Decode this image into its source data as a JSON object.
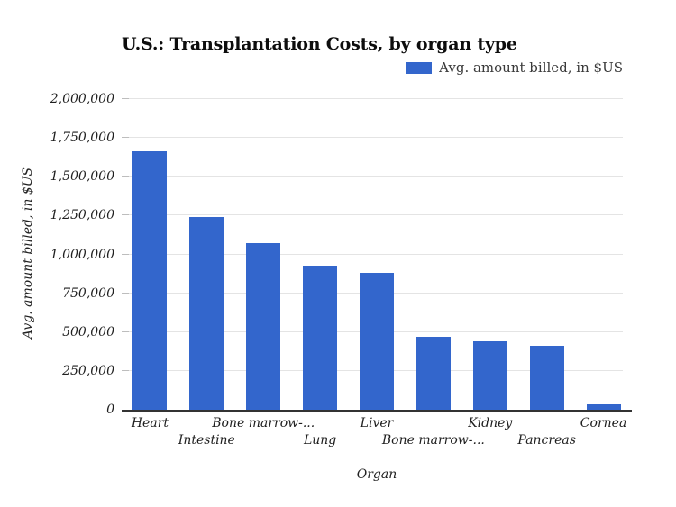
{
  "page": {
    "background_color": "#ffffff"
  },
  "chart_data": {
    "type": "bar",
    "title": "U.S.: Transplantation Costs, by organ type",
    "legend": {
      "label": "Avg. amount billed, in $US",
      "swatch_color": "#3366cc",
      "position": "top-right"
    },
    "xlabel": "Organ",
    "ylabel": "Avg. amount billed, in $US",
    "categories": [
      "Heart",
      "Intestine",
      "Bone marrow-...",
      "Lung",
      "Liver",
      "Bone marrow-...",
      "Kidney",
      "Pancreas",
      "Cornea"
    ],
    "values": [
      1664800,
      1240700,
      1071700,
      929600,
      878400,
      471600,
      442500,
      408800,
      32500
    ],
    "ylim": [
      0,
      2000000
    ],
    "y_tick_interval": 250000,
    "y_tick_labels": [
      "0",
      "250,000",
      "500,000",
      "750,000",
      "1,000,000",
      "1,250,000",
      "1,500,000",
      "1,750,000",
      "2,000,000"
    ],
    "grid": true,
    "x_labels_staggered": true,
    "bar_color": "#3366cc",
    "gridline_color": "#e4e4e4",
    "tick_color": "#bdbdbd",
    "axis_line_color": "#333333",
    "text_color": "#1f1f1f"
  }
}
